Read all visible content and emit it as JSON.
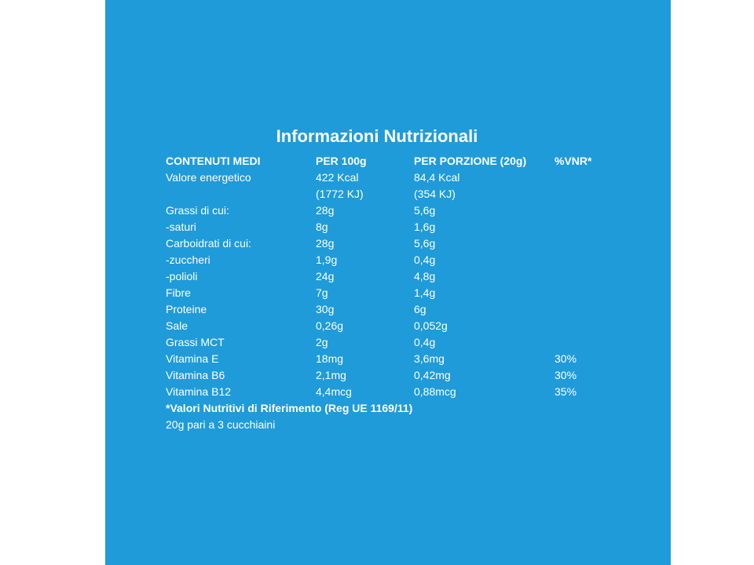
{
  "title": "Informazioni Nutrizionali",
  "table": {
    "header": [
      "CONTENUTI MEDI",
      "PER 100g",
      "PER PORZIONE (20g)",
      "%VNR*"
    ],
    "rows": [
      {
        "label": "Valore energetico",
        "per100": [
          "422 Kcal",
          "(1772 KJ)"
        ],
        "portion": [
          "84,4 Kcal",
          "(354 KJ)"
        ]
      },
      {
        "label": "Grassi di cui:",
        "per100": [
          "28g"
        ],
        "portion": [
          "5,6g"
        ]
      },
      {
        "label": "-saturi",
        "per100": [
          "8g"
        ],
        "portion": [
          "1,6g"
        ]
      },
      {
        "label": "Carboidrati di cui:",
        "per100": [
          "28g"
        ],
        "portion": [
          "5,6g"
        ]
      },
      {
        "label": "-zuccheri",
        "per100": [
          "1,9g"
        ],
        "portion": [
          "0,4g"
        ]
      },
      {
        "label": "-polioli",
        "per100": [
          "24g"
        ],
        "portion": [
          "4,8g"
        ]
      },
      {
        "label": "Fibre",
        "per100": [
          "7g"
        ],
        "portion": [
          "1,4g"
        ]
      },
      {
        "label": "Proteine",
        "per100": [
          "30g"
        ],
        "portion": [
          "6g"
        ]
      },
      {
        "label": "Sale",
        "per100": [
          "0,26g"
        ],
        "portion": [
          "0,052g"
        ]
      },
      {
        "label": "Grassi MCT",
        "per100": [
          "2g"
        ],
        "portion": [
          "0,4g"
        ]
      },
      {
        "label": "Vitamina E",
        "per100": [
          "18mg"
        ],
        "portion": [
          "3,6mg"
        ],
        "vnr": "30%"
      },
      {
        "label": "Vitamina B6",
        "per100": [
          "2,1mg"
        ],
        "portion": [
          "0,42mg"
        ],
        "vnr": "30%"
      },
      {
        "label": "Vitamina B12",
        "per100": [
          "4,4mcg"
        ],
        "portion": [
          "0,88mcg"
        ],
        "vnr": "35%"
      }
    ]
  },
  "footnote": "*Valori Nutritivi di Riferimento (Reg UE 1169/11)",
  "note": "20g pari a 3 cucchiaini"
}
